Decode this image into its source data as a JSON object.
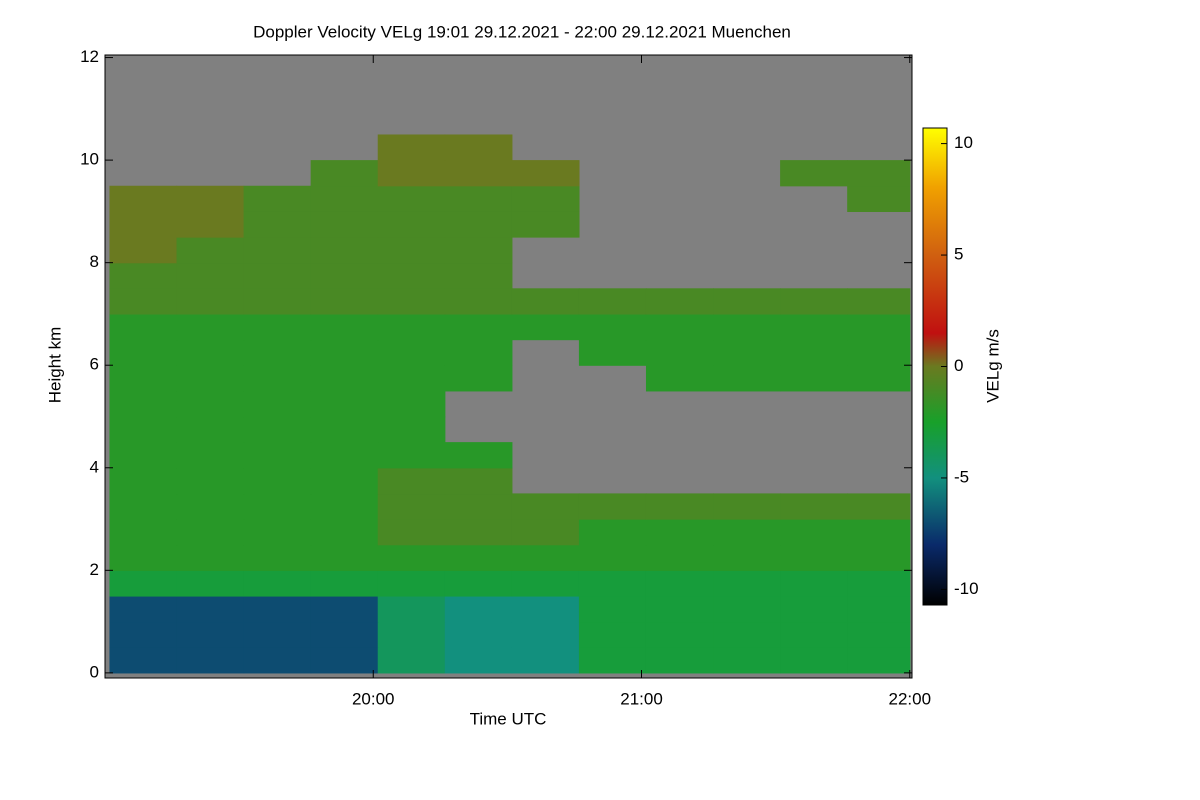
{
  "chart_data": {
    "type": "heatmap",
    "title": "Doppler Velocity VELg   19:01 29.12.2021 - 22:00 29.12.2021 Muenchen",
    "x_label": "Time UTC",
    "y_label": "Height km",
    "colorbar_label": "VELg m/s",
    "xlim": [
      1140,
      1320.5
    ],
    "xticks": [
      {
        "value": 1200,
        "label": "20:00"
      },
      {
        "value": 1260,
        "label": "21:00"
      },
      {
        "value": 1320,
        "label": "22:00"
      }
    ],
    "ylim": [
      -0.1,
      12.05
    ],
    "yticks": [
      0,
      2,
      4,
      6,
      8,
      10,
      12
    ],
    "clim": [
      -10.7,
      10.7
    ],
    "cticks": [
      -10,
      -5,
      0,
      5,
      10
    ],
    "nan_color": "#808080",
    "colormap": [
      {
        "value": -10.7,
        "color": "#000000"
      },
      {
        "value": -8,
        "color": "#0a2a6a"
      },
      {
        "value": -5,
        "color": "#12907e"
      },
      {
        "value": -2.5,
        "color": "#18a02a"
      },
      {
        "value": 0,
        "color": "#6a7a20"
      },
      {
        "value": 1.5,
        "color": "#c01010"
      },
      {
        "value": 5,
        "color": "#d06010"
      },
      {
        "value": 8,
        "color": "#f0a000"
      },
      {
        "value": 10.7,
        "color": "#ffff00"
      }
    ],
    "x_bins": [
      1141,
      1156,
      1171,
      1186,
      1201,
      1216,
      1231,
      1246,
      1261,
      1276,
      1291,
      1306,
      1320
    ],
    "y_bins": [
      0,
      0.5,
      1,
      1.5,
      2,
      2.5,
      3,
      3.5,
      4,
      4.5,
      5,
      5.5,
      6,
      6.5,
      7,
      7.5,
      8,
      8.5,
      9,
      9.5,
      10,
      10.5,
      11,
      11.5,
      12
    ],
    "z": [
      [
        -7,
        -7,
        -7,
        -7,
        -4,
        -5,
        -5,
        -3,
        -3,
        -3,
        -3,
        -3
      ],
      [
        -7,
        -7,
        -7,
        -7,
        -4,
        -5,
        -5,
        -3,
        -3,
        -3,
        -3,
        -3
      ],
      [
        -7,
        -7,
        -7,
        -7,
        -4,
        -5,
        -5,
        -3,
        -3,
        -3,
        -3,
        -3
      ],
      [
        -3,
        -3,
        -3,
        -3,
        -3,
        -3,
        -3,
        -3,
        -3,
        -3,
        -3,
        -3
      ],
      [
        -2,
        -2,
        -2,
        -2,
        -2,
        -2,
        -2,
        -2,
        -2,
        -2,
        -2,
        -2
      ],
      [
        -2,
        -2,
        -2,
        -2,
        -1,
        -1,
        -1,
        -2,
        -2,
        -2,
        -2,
        -2
      ],
      [
        -2,
        -2,
        -2,
        -2,
        -1,
        -1,
        -1,
        -1,
        -1,
        -1,
        -1,
        -1
      ],
      [
        -2,
        -2,
        -2,
        -2,
        -1,
        -1,
        null,
        null,
        null,
        null,
        null,
        null
      ],
      [
        -2,
        -2,
        -2,
        -2,
        -2,
        -2,
        null,
        null,
        null,
        null,
        null,
        null
      ],
      [
        -2,
        -2,
        -2,
        -2,
        -2,
        null,
        null,
        null,
        null,
        null,
        null,
        null
      ],
      [
        -2,
        -2,
        -2,
        -2,
        -2,
        null,
        null,
        null,
        null,
        null,
        null,
        null
      ],
      [
        -2,
        -2,
        -2,
        -2,
        -2,
        -2,
        null,
        null,
        -2,
        -2,
        -2,
        -2
      ],
      [
        -2,
        -2,
        -2,
        -2,
        -2,
        -2,
        null,
        -2,
        -2,
        -2,
        -2,
        -2
      ],
      [
        -2,
        -2,
        -2,
        -2,
        -2,
        -2,
        -2,
        -2,
        -2,
        -2,
        -2,
        -2
      ],
      [
        -1,
        -1,
        -1,
        -1,
        -1,
        -1,
        -1,
        -1,
        -1,
        -1,
        -1,
        -1
      ],
      [
        -1,
        -1,
        -1,
        -1,
        -1,
        -1,
        null,
        null,
        null,
        null,
        null,
        null
      ],
      [
        0,
        -1,
        -1,
        -1,
        -1,
        -1,
        null,
        null,
        null,
        null,
        null,
        null
      ],
      [
        0,
        0,
        -1,
        -1,
        -1,
        -1,
        -1,
        null,
        null,
        null,
        null,
        null
      ],
      [
        0,
        0,
        -1,
        -1,
        -1,
        -1,
        -1,
        null,
        null,
        null,
        null,
        -1
      ],
      [
        null,
        null,
        null,
        -1,
        0,
        0,
        0,
        null,
        null,
        null,
        -1,
        -1
      ],
      [
        null,
        null,
        null,
        null,
        0,
        0,
        null,
        null,
        null,
        null,
        null,
        null
      ],
      [
        null,
        null,
        null,
        null,
        null,
        null,
        null,
        null,
        null,
        null,
        null,
        null
      ],
      [
        null,
        null,
        null,
        null,
        null,
        null,
        null,
        null,
        null,
        null,
        null,
        null
      ],
      [
        null,
        null,
        null,
        null,
        null,
        null,
        null,
        null,
        null,
        null,
        null,
        null
      ]
    ]
  }
}
